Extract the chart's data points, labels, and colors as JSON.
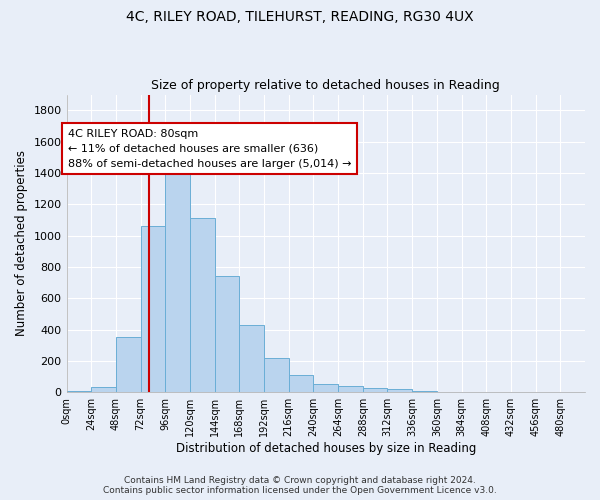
{
  "title1": "4C, RILEY ROAD, TILEHURST, READING, RG30 4UX",
  "title2": "Size of property relative to detached houses in Reading",
  "xlabel": "Distribution of detached houses by size in Reading",
  "ylabel": "Number of detached properties",
  "bar_values": [
    10,
    35,
    355,
    1060,
    1470,
    1110,
    745,
    430,
    220,
    110,
    50,
    40,
    30,
    20,
    10,
    5,
    3,
    2,
    1,
    1,
    0
  ],
  "bin_edges": [
    0,
    24,
    48,
    72,
    96,
    120,
    144,
    168,
    192,
    216,
    240,
    264,
    288,
    312,
    336,
    360,
    384,
    408,
    432,
    456,
    480,
    504
  ],
  "bar_color": "#bad4ee",
  "bar_edge_color": "#6aaed6",
  "vline_x": 80,
  "vline_color": "#cc0000",
  "annotation_text": "4C RILEY ROAD: 80sqm\n← 11% of detached houses are smaller (636)\n88% of semi-detached houses are larger (5,014) →",
  "annotation_box_color": "#ffffff",
  "annotation_box_edge": "#cc0000",
  "ylim": [
    0,
    1900
  ],
  "yticks": [
    0,
    200,
    400,
    600,
    800,
    1000,
    1200,
    1400,
    1600,
    1800
  ],
  "tick_labels": [
    "0sqm",
    "24sqm",
    "48sqm",
    "72sqm",
    "96sqm",
    "120sqm",
    "144sqm",
    "168sqm",
    "192sqm",
    "216sqm",
    "240sqm",
    "264sqm",
    "288sqm",
    "312sqm",
    "336sqm",
    "360sqm",
    "384sqm",
    "408sqm",
    "432sqm",
    "456sqm",
    "480sqm"
  ],
  "footer": "Contains HM Land Registry data © Crown copyright and database right 2024.\nContains public sector information licensed under the Open Government Licence v3.0.",
  "background_color": "#e8eef8",
  "grid_color": "#ffffff",
  "title1_fontsize": 10,
  "title2_fontsize": 9,
  "xlabel_fontsize": 8.5,
  "ylabel_fontsize": 8.5,
  "footer_fontsize": 6.5,
  "ann_fontsize": 8,
  "tick_fontsize": 7,
  "ytick_fontsize": 8
}
